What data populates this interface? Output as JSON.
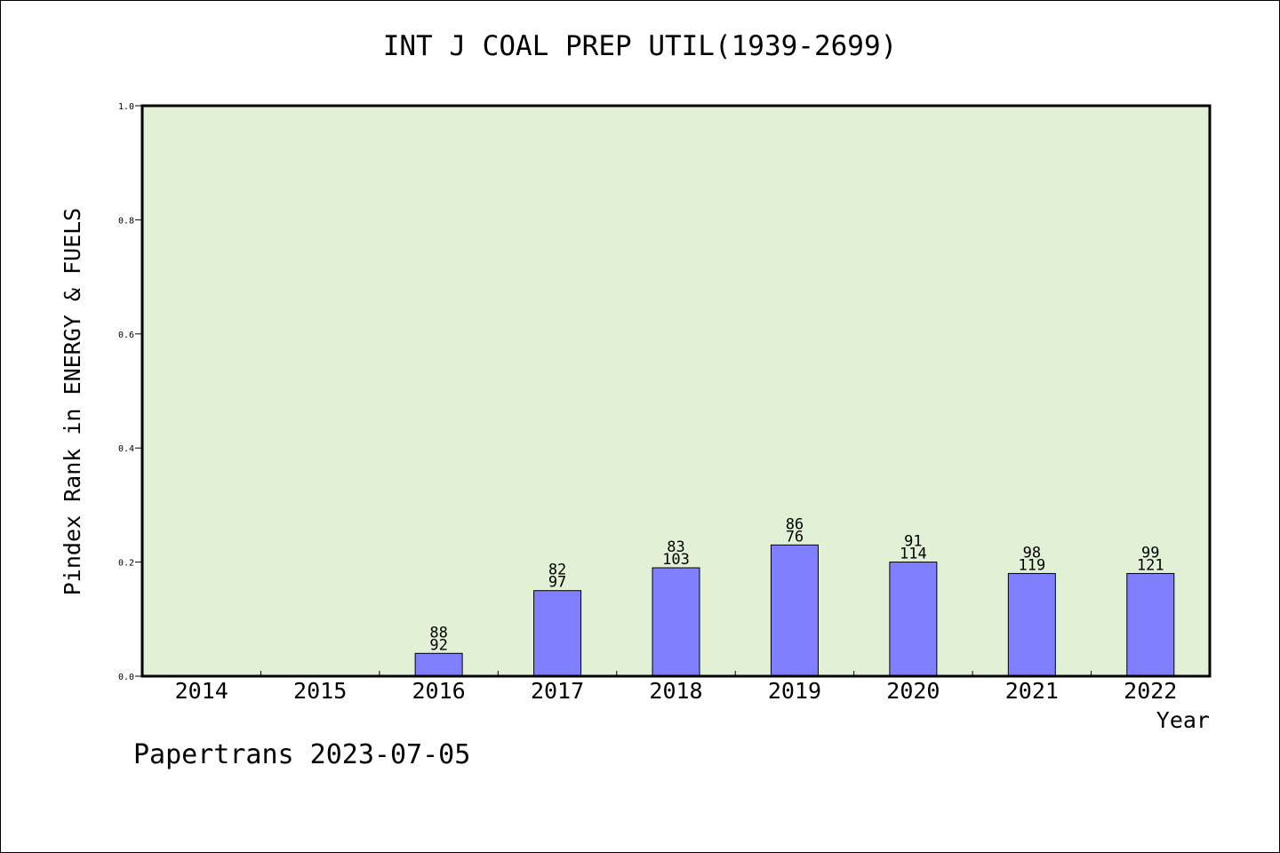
{
  "title": "INT J COAL PREP UTIL(1939-2699)",
  "footer": "Papertrans 2023-07-05",
  "chart_data": {
    "type": "bar",
    "title": "INT J COAL PREP UTIL(1939-2699)",
    "xlabel": "Year",
    "ylabel": "Pindex Rank in ENERGY & FUELS",
    "ylim": [
      0,
      1.0
    ],
    "yticks": [
      "0.0",
      "0.2",
      "0.4",
      "0.6",
      "0.8",
      "1.0"
    ],
    "categories": [
      "2014",
      "2015",
      "2016",
      "2017",
      "2018",
      "2019",
      "2020",
      "2021",
      "2022"
    ],
    "values": [
      null,
      null,
      0.04,
      0.15,
      0.19,
      0.23,
      0.2,
      0.18,
      0.18
    ],
    "label_top": [
      "",
      "",
      "88",
      "82",
      "83",
      "86",
      "91",
      "98",
      "99"
    ],
    "label_bottom": [
      "",
      "",
      "92",
      "97",
      "103",
      "76",
      "114",
      "119",
      "121"
    ],
    "grid": false,
    "colors": {
      "plot_bg": "#e2f0d6",
      "bar_fill": "#8080ff",
      "bar_stroke": "#000000"
    }
  }
}
